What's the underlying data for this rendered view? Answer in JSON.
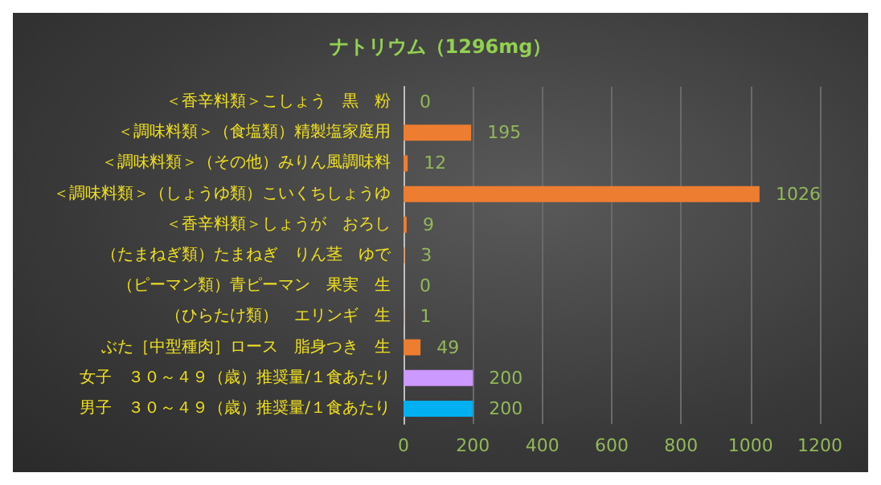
{
  "chart_data": {
    "type": "bar",
    "orientation": "horizontal",
    "title": "ナトリウム（1296mg）",
    "categories": [
      "＜香辛料類＞こしょう　黒　粉",
      "＜調味料類＞（食塩類）精製塩家庭用",
      "＜調味料類＞（その他）みりん風調味料",
      "＜調味料類＞（しょうゆ類）こいくちしょうゆ",
      "＜香辛料類＞しょうが　おろし",
      "（たまねぎ類）たまねぎ　りん茎　ゆで",
      "（ピーマン類）青ピーマン　果実　生",
      "（ひらたけ類）　エリンギ　生",
      "ぶた［中型種肉］ロース　脂身つき　生",
      "女子　３０～４９（歳）推奨量/１食あたり",
      "男子　３０～４９（歳）推奨量/１食あたり"
    ],
    "values": [
      0,
      195,
      12,
      1026,
      9,
      3,
      0,
      1,
      49,
      200,
      200
    ],
    "colors": [
      "#ed7d31",
      "#ed7d31",
      "#ed7d31",
      "#ed7d31",
      "#ed7d31",
      "#ed7d31",
      "#ed7d31",
      "#ed7d31",
      "#ed7d31",
      "#cc99ff",
      "#00b0f0"
    ],
    "data_labels": true,
    "xlim": [
      0,
      1200
    ],
    "xticks": [
      0,
      200,
      400,
      600,
      800,
      1000,
      1200
    ],
    "grid": "x"
  }
}
